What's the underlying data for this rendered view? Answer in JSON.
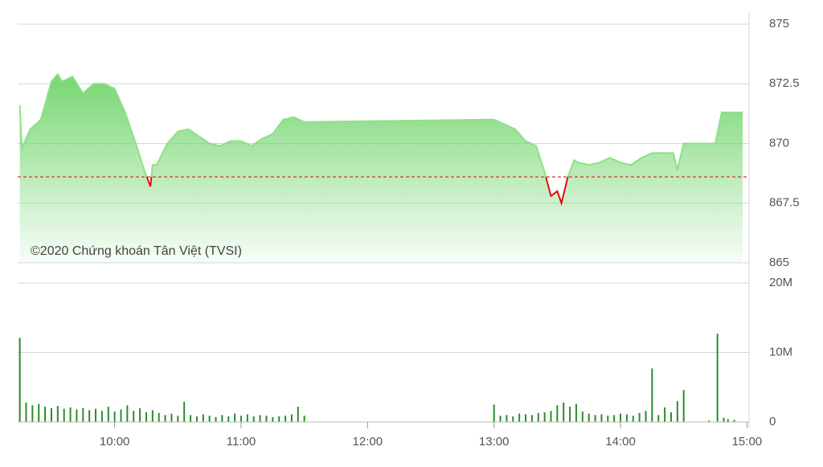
{
  "chart_data": [
    {
      "type": "line",
      "annotation": "©2020 Chứng khoán Tân Việt (TVSI)",
      "x": [
        555,
        556,
        560,
        565,
        570,
        573,
        575,
        580,
        585,
        590,
        595,
        600,
        605,
        610,
        614,
        617,
        618,
        620,
        625,
        630,
        635,
        640,
        645,
        650,
        655,
        660,
        665,
        670,
        675,
        680,
        685,
        690,
        780,
        785,
        790,
        795,
        800,
        804,
        807,
        810,
        812,
        815,
        818,
        820,
        825,
        830,
        835,
        840,
        845,
        850,
        855,
        860,
        865,
        867,
        870,
        885,
        888,
        898
      ],
      "values": [
        871.6,
        869.8,
        870.6,
        871.0,
        872.6,
        872.9,
        872.6,
        872.8,
        872.1,
        872.5,
        872.5,
        872.3,
        871.3,
        870.0,
        868.9,
        868.2,
        869.1,
        869.1,
        870.0,
        870.5,
        870.6,
        870.3,
        870.0,
        869.9,
        870.1,
        870.1,
        869.9,
        870.2,
        870.4,
        871.0,
        871.1,
        870.9,
        871.0,
        870.8,
        870.6,
        870.1,
        869.9,
        868.8,
        867.8,
        868.0,
        867.5,
        868.6,
        869.3,
        869.2,
        869.1,
        869.2,
        869.4,
        869.2,
        869.1,
        869.4,
        869.6,
        869.6,
        869.6,
        868.9,
        870.0,
        870.0,
        871.3,
        871.3
      ],
      "reference": 868.6,
      "color": "#8ee088",
      "color_below": "#e01010",
      "xlim": [
        554,
        901
      ],
      "ylim": [
        865,
        875
      ],
      "yticks": [
        865,
        867.5,
        870,
        872.5,
        875
      ],
      "grid": true
    },
    {
      "type": "bar",
      "x": [
        555,
        558,
        561,
        564,
        567,
        570,
        573,
        576,
        579,
        582,
        585,
        588,
        591,
        594,
        597,
        600,
        603,
        606,
        609,
        612,
        615,
        618,
        621,
        624,
        627,
        630,
        633,
        636,
        639,
        642,
        645,
        648,
        651,
        654,
        657,
        660,
        663,
        666,
        669,
        672,
        675,
        678,
        681,
        684,
        687,
        690,
        780,
        783,
        786,
        789,
        792,
        795,
        798,
        801,
        804,
        807,
        810,
        813,
        816,
        819,
        822,
        825,
        828,
        831,
        834,
        837,
        840,
        843,
        846,
        849,
        852,
        855,
        858,
        861,
        864,
        867,
        870,
        882,
        886,
        889,
        891,
        894
      ],
      "values": [
        12100000,
        2800000,
        2400000,
        2600000,
        2200000,
        2000000,
        2300000,
        1900000,
        2100000,
        1800000,
        2000000,
        1700000,
        1900000,
        1600000,
        2200000,
        1500000,
        1800000,
        2400000,
        1600000,
        2000000,
        1400000,
        1700000,
        1300000,
        1000000,
        1200000,
        900000,
        2900000,
        1000000,
        800000,
        1100000,
        900000,
        700000,
        1000000,
        800000,
        1200000,
        900000,
        1100000,
        800000,
        1000000,
        900000,
        700000,
        800000,
        900000,
        1100000,
        2200000,
        900000,
        2500000,
        900000,
        1000000,
        800000,
        1200000,
        1100000,
        1000000,
        1300000,
        1400000,
        1600000,
        2400000,
        2800000,
        2200000,
        2600000,
        1500000,
        1200000,
        1000000,
        1100000,
        900000,
        1000000,
        1200000,
        1100000,
        900000,
        1300000,
        1600000,
        7700000,
        1000000,
        2100000,
        1400000,
        3000000,
        4600000,
        200000,
        12700000,
        600000,
        400000,
        300000
      ],
      "color": "#2f8a2f",
      "xlim": [
        554,
        901
      ],
      "xticks": [
        {
          "value": 600,
          "label": "10:00"
        },
        {
          "value": 660,
          "label": "11:00"
        },
        {
          "value": 720,
          "label": "12:00"
        },
        {
          "value": 780,
          "label": "13:00"
        },
        {
          "value": 840,
          "label": "14:00"
        },
        {
          "value": 900,
          "label": "15:00"
        }
      ],
      "ylim": [
        0,
        20000000
      ],
      "yticks": [
        0,
        {
          "value": 10000000,
          "label": "10M"
        },
        {
          "value": 20000000,
          "label": "20M"
        }
      ],
      "grid": true
    }
  ]
}
